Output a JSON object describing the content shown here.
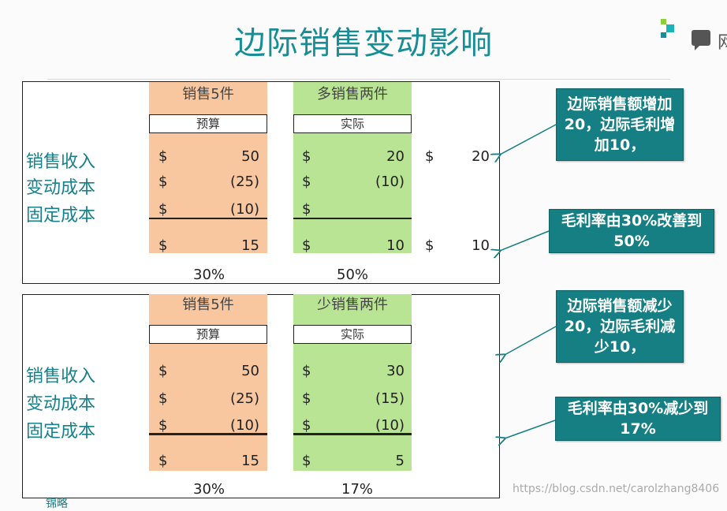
{
  "title": "边际销售变动影响",
  "labels": [
    "销售收入",
    "变动成本",
    "固定成本"
  ],
  "panels": [
    {
      "budget_header": "销售5件",
      "actual_header": "多销售两件",
      "budget_box": "预算",
      "actual_box": "实际",
      "currency": "$",
      "budget_values": [
        "50",
        "(25)",
        "(10)",
        "15"
      ],
      "actual_values": [
        "20",
        "(10)",
        "",
        "10"
      ],
      "diff_values": [
        "20",
        "10"
      ],
      "budget_margin": "30%",
      "actual_margin": "50%"
    },
    {
      "budget_header": "销售5件",
      "actual_header": "少销售两件",
      "budget_box": "预算",
      "actual_box": "实际",
      "currency": "$",
      "budget_values": [
        "50",
        "(25)",
        "(10)",
        "15"
      ],
      "actual_values": [
        "30",
        "(15)",
        "(10)",
        "5"
      ],
      "budget_margin": "30%",
      "actual_margin": "17%"
    }
  ],
  "callouts": [
    "边际销售额增加20，边际毛利增加10，",
    "毛利率由30%改善到50%",
    "边际销售额减少20，边际毛利减少10，",
    "毛利率由30%减少到17%"
  ],
  "watermark": "https://blog.csdn.net/carolzhang8406",
  "corner_char": "网",
  "bottom_text": "锦略",
  "colors": {
    "title": "#178d95",
    "budget": "#f8c79f",
    "actual": "#b9e493",
    "callout": "#167f83"
  }
}
